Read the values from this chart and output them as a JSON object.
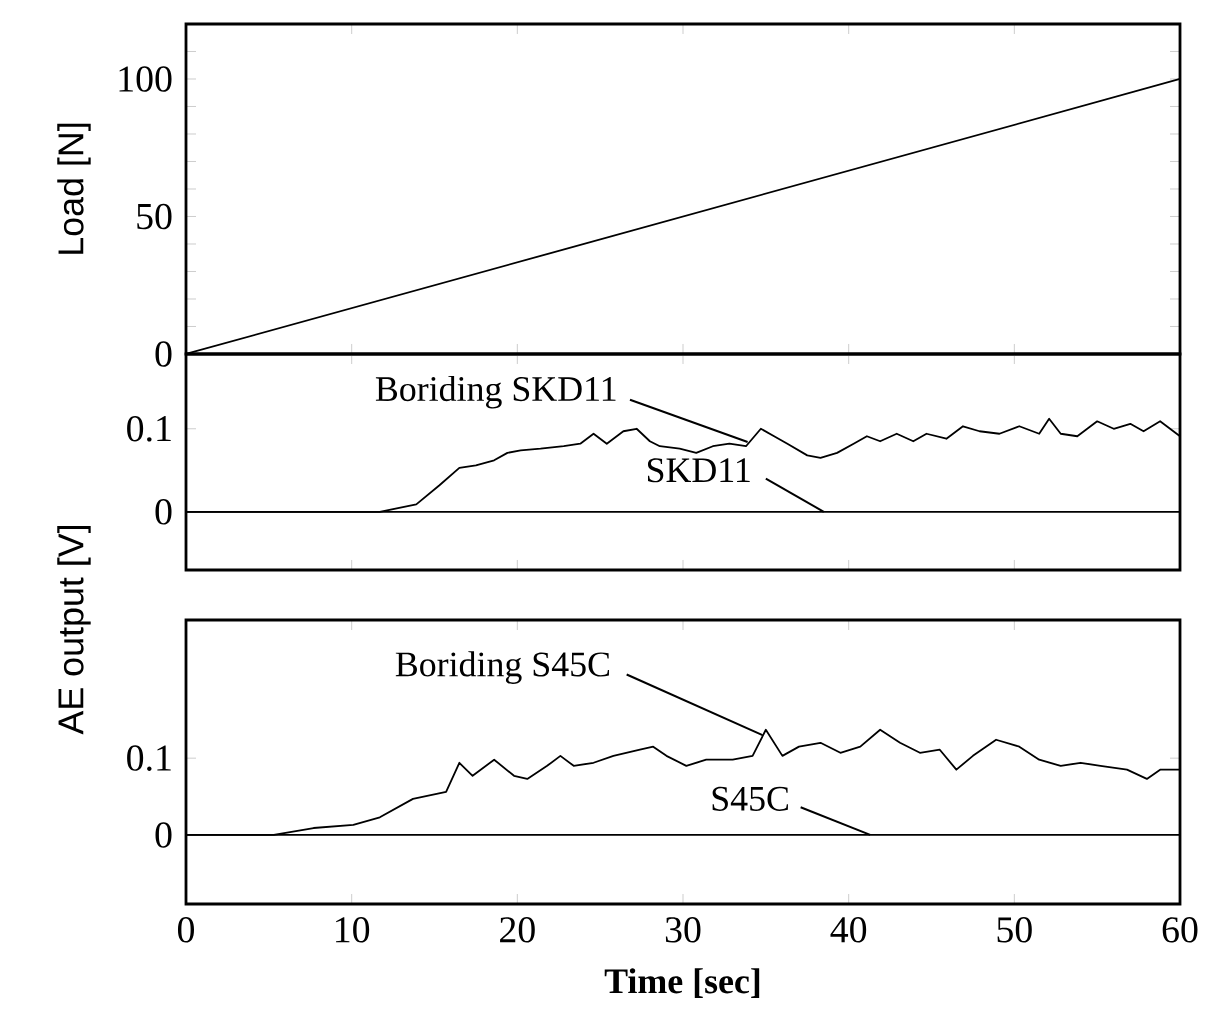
{
  "chart_data": [
    {
      "type": "line",
      "ylabel": "Load [N]",
      "xlim": [
        0,
        60
      ],
      "ylim": [
        0,
        120
      ],
      "xticks": [
        0,
        10,
        20,
        30,
        40,
        50,
        60
      ],
      "yticks": [
        0,
        {
          "value": 10,
          "label": null
        },
        {
          "value": 20,
          "label": null
        },
        {
          "value": 30,
          "label": null
        },
        {
          "value": 40,
          "label": null
        },
        50,
        {
          "value": 60,
          "label": null
        },
        {
          "value": 70,
          "label": null
        },
        {
          "value": 80,
          "label": null
        },
        {
          "value": 90,
          "label": null
        },
        100,
        {
          "value": 110,
          "label": null
        }
      ],
      "tick_labels": "y",
      "line_style": "solid",
      "marker": "none",
      "series": [
        {
          "color": "#000000",
          "x": [
            0,
            60
          ],
          "values": [
            0,
            100
          ]
        }
      ]
    },
    {
      "type": "line",
      "ylabel": "AE output [V]",
      "xlim": [
        0,
        60
      ],
      "ylim": [
        -0.07,
        0.19
      ],
      "xticks": [
        0,
        10,
        20,
        30,
        40,
        50,
        60
      ],
      "yticks": [
        0,
        0.1
      ],
      "tick_labels": "y",
      "line_style": "solid",
      "marker": "none",
      "series": [
        {
          "name": "Boriding SKD11",
          "color": "#000000",
          "x": [
            0,
            11.7,
            13.9,
            15.3,
            16.5,
            17.5,
            18.6,
            19.4,
            20.2,
            21.4,
            22.8,
            23.8,
            24.6,
            25.4,
            26.4,
            27.2,
            28,
            28.6,
            29.8,
            30.8,
            31.8,
            32.8,
            33.8,
            34.7,
            35.5,
            36.3,
            37.5,
            38.3,
            39.3,
            40.3,
            41.1,
            41.9,
            42.9,
            43.9,
            44.7,
            45.9,
            46.9,
            47.9,
            49.1,
            50.3,
            51.5,
            52.1,
            52.8,
            53.8,
            55,
            56,
            57,
            57.8,
            58.8,
            60
          ],
          "values": [
            0,
            0,
            0.009,
            0.032,
            0.053,
            0.056,
            0.062,
            0.071,
            0.074,
            0.076,
            0.079,
            0.082,
            0.094,
            0.082,
            0.097,
            0.1,
            0.085,
            0.079,
            0.076,
            0.071,
            0.079,
            0.082,
            0.079,
            0.1,
            0.091,
            0.082,
            0.068,
            0.065,
            0.071,
            0.082,
            0.091,
            0.085,
            0.094,
            0.085,
            0.094,
            0.088,
            0.103,
            0.097,
            0.094,
            0.103,
            0.094,
            0.112,
            0.094,
            0.091,
            0.109,
            0.1,
            0.106,
            0.097,
            0.109,
            0.091
          ]
        },
        {
          "name": "SKD11",
          "color": "#000000",
          "x": [
            0,
            60
          ],
          "values": [
            0,
            0
          ]
        }
      ]
    },
    {
      "type": "line",
      "xlabel": "Time  [sec]",
      "xlim": [
        0,
        60
      ],
      "ylim": [
        -0.09,
        0.28
      ],
      "xticks": [
        0,
        10,
        20,
        30,
        40,
        50,
        60
      ],
      "yticks": [
        0,
        0.1
      ],
      "line_style": "solid",
      "marker": "none",
      "series": [
        {
          "name": "Boriding S45C",
          "color": "#000000",
          "x": [
            0,
            5.3,
            7.7,
            10.1,
            11.7,
            13.7,
            15.7,
            16.5,
            17.3,
            18.6,
            19.8,
            20.6,
            21.8,
            22.6,
            23.4,
            24.6,
            25.8,
            27.4,
            28.2,
            29,
            30.2,
            31.4,
            33,
            34.2,
            35,
            36,
            37,
            38.3,
            39.5,
            40.7,
            41.9,
            43.1,
            44.3,
            45.5,
            46.5,
            47.5,
            48.9,
            50.3,
            51.5,
            52.8,
            54,
            55.2,
            56.8,
            58,
            58.8,
            59.6,
            60
          ],
          "values": [
            0,
            0,
            0.009,
            0.013,
            0.023,
            0.047,
            0.056,
            0.094,
            0.077,
            0.098,
            0.077,
            0.073,
            0.09,
            0.103,
            0.09,
            0.094,
            0.103,
            0.111,
            0.115,
            0.103,
            0.09,
            0.098,
            0.098,
            0.103,
            0.137,
            0.103,
            0.115,
            0.12,
            0.107,
            0.115,
            0.137,
            0.12,
            0.107,
            0.111,
            0.085,
            0.103,
            0.124,
            0.115,
            0.098,
            0.09,
            0.094,
            0.09,
            0.085,
            0.073,
            0.085,
            0.085,
            0.085
          ]
        },
        {
          "name": "S45C",
          "color": "#000000",
          "x": [
            0,
            60
          ],
          "values": [
            0,
            0
          ]
        }
      ]
    }
  ]
}
